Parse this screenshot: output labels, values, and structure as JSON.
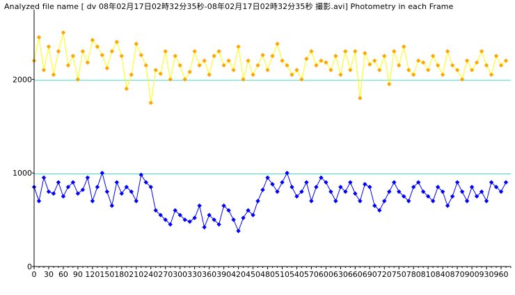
{
  "title": "Analyzed file name [ dv 08年02月17日02時32分35秒-08年02月17日02時32分35秒 撮影.avi]   Photometry in each Frame",
  "colors": {
    "background": "#ffffff",
    "upper_series": "#ffa500",
    "upper_line": "#ffff00",
    "lower_series": "#0000ff",
    "reference_line": "#40e0d0",
    "axis": "#000000"
  },
  "chart_data": {
    "type": "line",
    "title": "Photometry in each Frame",
    "xlabel": "",
    "ylabel": "",
    "xlim": [
      0,
      980
    ],
    "ylim": [
      0,
      2700
    ],
    "x_ticks": [
      0,
      30,
      60,
      90,
      120,
      150,
      180,
      210,
      240,
      270,
      300,
      330,
      360,
      390,
      420,
      450,
      480,
      510,
      540,
      570,
      600,
      630,
      660,
      690,
      720,
      750,
      780,
      810,
      840,
      870,
      900,
      930,
      960
    ],
    "y_ticks": [
      0,
      1000,
      2000
    ],
    "reference_lines": [
      {
        "y": 1990,
        "color": "#40e0d0"
      },
      {
        "y": 990,
        "color": "#40e0d0"
      }
    ],
    "markers": "diamond",
    "grid": false,
    "legend": "none",
    "series": [
      {
        "color": "#ffa500",
        "line_color": "#ffff00",
        "x_start": 0,
        "x_step": 10,
        "values": [
          2200,
          2450,
          2100,
          2350,
          2050,
          2300,
          2500,
          2150,
          2250,
          2000,
          2300,
          2180,
          2420,
          2350,
          2260,
          2120,
          2300,
          2400,
          2250,
          1900,
          2050,
          2380,
          2260,
          2150,
          1750,
          2100,
          2060,
          2300,
          2000,
          2250,
          2150,
          2000,
          2080,
          2300,
          2150,
          2200,
          2050,
          2250,
          2300,
          2150,
          2200,
          2100,
          2350,
          2000,
          2200,
          2050,
          2150,
          2260,
          2100,
          2250,
          2380,
          2200,
          2150,
          2050,
          2100,
          2000,
          2220,
          2300,
          2150,
          2200,
          2180,
          2100,
          2250,
          2050,
          2300,
          2100,
          2300,
          1800,
          2280,
          2160,
          2200,
          2100,
          2250,
          1950,
          2300,
          2150,
          2350,
          2100,
          2050,
          2200,
          2180,
          2100,
          2250,
          2150,
          2050,
          2300,
          2150,
          2100,
          2000,
          2200,
          2100,
          2180,
          2300,
          2150,
          2050,
          2250,
          2150,
          2200
        ]
      },
      {
        "color": "#0000ff",
        "x_start": 0,
        "x_step": 10,
        "values": [
          850,
          700,
          950,
          800,
          780,
          900,
          750,
          850,
          900,
          780,
          820,
          950,
          700,
          850,
          1000,
          800,
          650,
          900,
          780,
          850,
          800,
          700,
          980,
          900,
          850,
          600,
          550,
          500,
          450,
          600,
          550,
          500,
          480,
          520,
          650,
          420,
          550,
          500,
          450,
          650,
          600,
          500,
          380,
          520,
          600,
          550,
          700,
          820,
          950,
          880,
          800,
          900,
          1000,
          850,
          750,
          800,
          900,
          700,
          850,
          950,
          900,
          800,
          700,
          850,
          800,
          900,
          780,
          700,
          880,
          850,
          650,
          600,
          700,
          800,
          900,
          800,
          750,
          700,
          850,
          900,
          800,
          750,
          700,
          850,
          800,
          650,
          750,
          900,
          800,
          700,
          850,
          750,
          800,
          700,
          900,
          850,
          800,
          900
        ]
      }
    ]
  }
}
